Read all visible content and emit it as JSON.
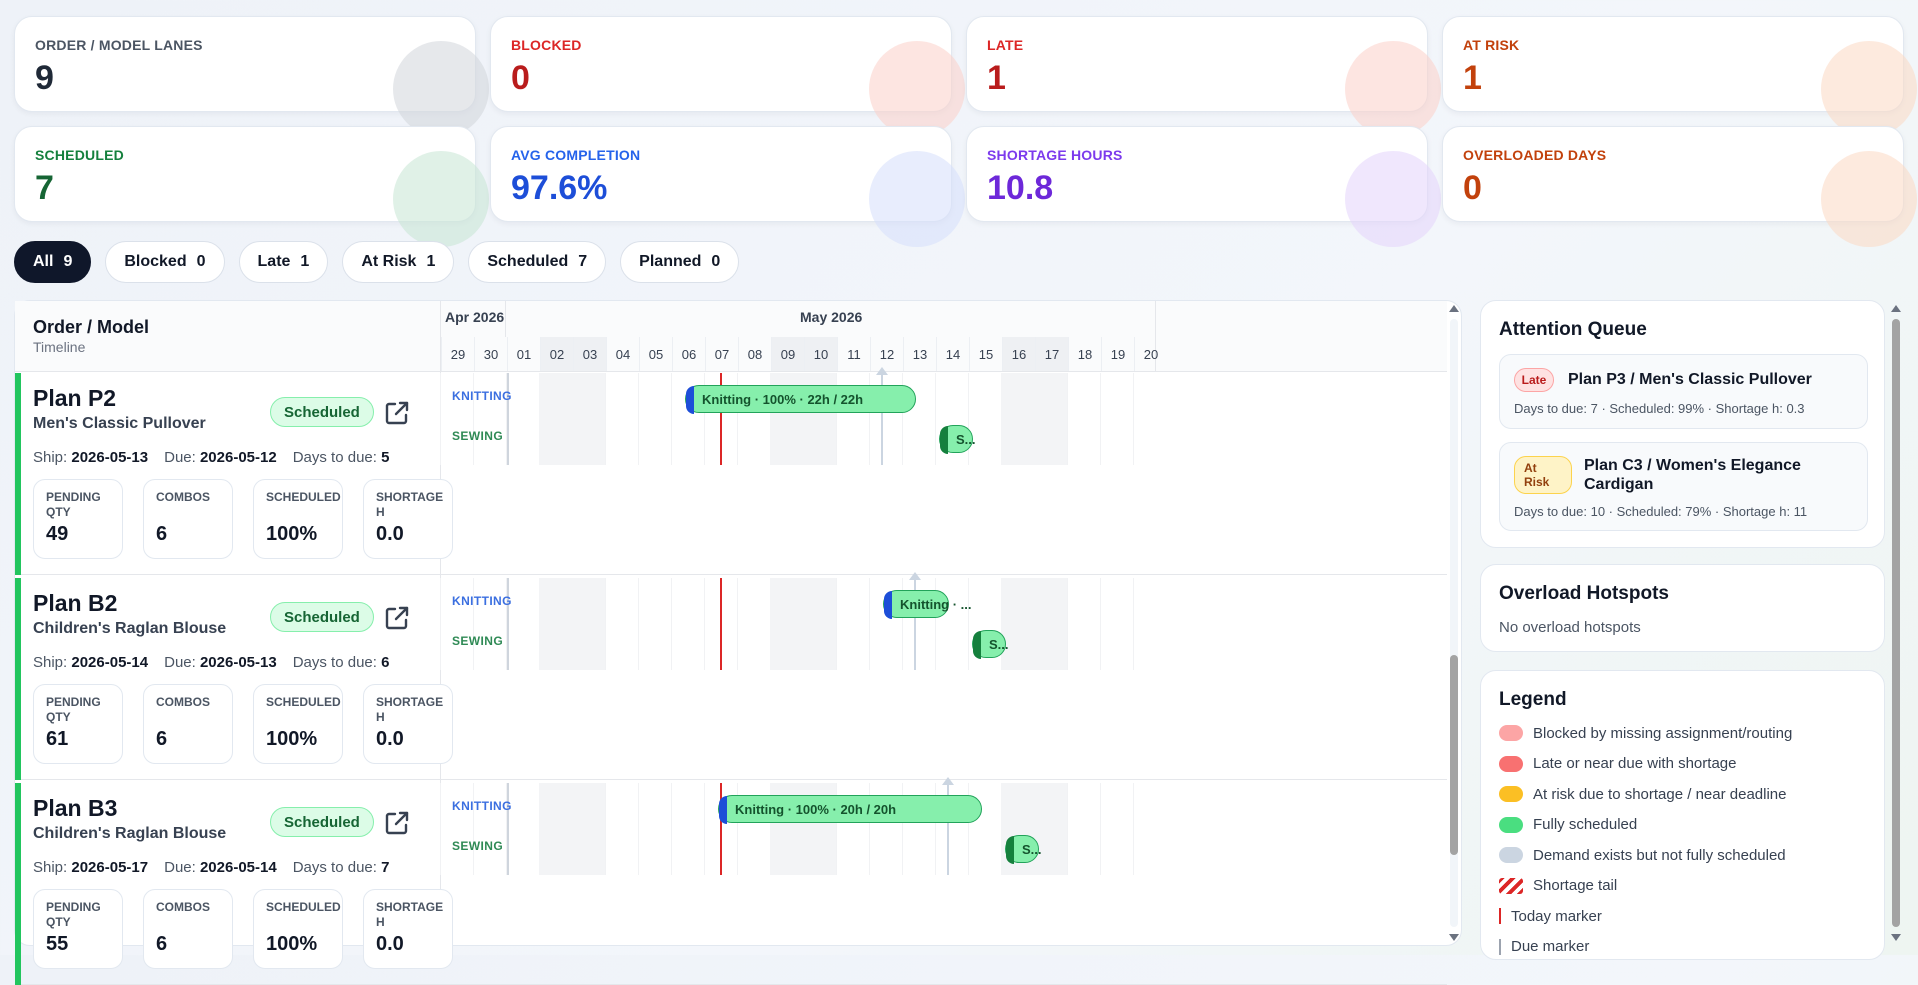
{
  "kpis": [
    {
      "label": "ORDER / MODEL LANES",
      "value": "9",
      "color": "#4b5563",
      "value_color": "#1f2937",
      "blob": "#d1d5db"
    },
    {
      "label": "BLOCKED",
      "value": "0",
      "color": "#dc2626",
      "value_color": "#b91c1c",
      "blob": "#fbcfc8"
    },
    {
      "label": "LATE",
      "value": "1",
      "color": "#dc2626",
      "value_color": "#b91c1c",
      "blob": "#fbcfc8"
    },
    {
      "label": "AT RISK",
      "value": "1",
      "color": "#c2410c",
      "value_color": "#c2410c",
      "blob": "#fbd9c3"
    },
    {
      "label": "SCHEDULED",
      "value": "7",
      "color": "#15803d",
      "value_color": "#166534",
      "blob": "#c7e6d3"
    },
    {
      "label": "AVG COMPLETION",
      "value": "97.6%",
      "color": "#2563eb",
      "value_color": "#1d4ed8",
      "blob": "#d6defc"
    },
    {
      "label": "SHORTAGE HOURS",
      "value": "10.8",
      "color": "#7c3aed",
      "value_color": "#6d28d9",
      "blob": "#e4d4fb"
    },
    {
      "label": "OVERLOADED DAYS",
      "value": "0",
      "color": "#c2410c",
      "value_color": "#c2410c",
      "blob": "#fbd9c3"
    }
  ],
  "filters": [
    {
      "label": "All",
      "count": "9",
      "active": true
    },
    {
      "label": "Blocked",
      "count": "0"
    },
    {
      "label": "Late",
      "count": "1"
    },
    {
      "label": "At Risk",
      "count": "1"
    },
    {
      "label": "Scheduled",
      "count": "7"
    },
    {
      "label": "Planned",
      "count": "0"
    }
  ],
  "gantt": {
    "header_title": "Order / Model",
    "header_sub": "Timeline",
    "months": [
      "Apr 2026",
      "May 2026"
    ],
    "days": [
      "29",
      "30",
      "01",
      "02",
      "03",
      "04",
      "05",
      "06",
      "07",
      "08",
      "09",
      "10",
      "11",
      "12",
      "13",
      "14",
      "15",
      "16",
      "17",
      "18",
      "19",
      "20"
    ],
    "weekend_days": [
      "02",
      "03",
      "09",
      "10",
      "16",
      "17"
    ],
    "lane_labels": {
      "knitting": "KNITTING",
      "sewing": "SEWING"
    },
    "stat_labels": {
      "pending": "PENDING QTY",
      "combos": "COMBOS",
      "scheduled": "SCHEDULED",
      "shortage": "SHORTAGE H"
    },
    "meta_labels": {
      "ship": "Ship:",
      "due": "Due:",
      "days": "Days to due:"
    },
    "today_day": "07",
    "rows": [
      {
        "plan": "Plan P2",
        "model": "Men's Classic Pullover",
        "status": "Scheduled",
        "ship": "2026-05-13",
        "due": "2026-05-12",
        "days_to_due": "5",
        "pending_qty": "49",
        "combos": "6",
        "scheduled": "100%",
        "shortage_h": "0.0",
        "knit_label": "Knitting · 100% · 22h / 22h",
        "sew_label": "S...",
        "knit_start": "06",
        "knit_end_day": "13",
        "sew_start": "14",
        "sew_end_day": "14",
        "due_day": "12"
      },
      {
        "plan": "Plan B2",
        "model": "Children's Raglan Blouse",
        "status": "Scheduled",
        "ship": "2026-05-14",
        "due": "2026-05-13",
        "days_to_due": "6",
        "pending_qty": "61",
        "combos": "6",
        "scheduled": "100%",
        "shortage_h": "0.0",
        "knit_label": "Knitting · ...",
        "sew_label": "S...",
        "knit_start": "12",
        "knit_end_day": "14",
        "sew_start": "15",
        "sew_end_day": "15",
        "due_day": "13"
      },
      {
        "plan": "Plan B3",
        "model": "Children's Raglan Blouse",
        "status": "Scheduled",
        "ship": "2026-05-17",
        "due": "2026-05-14",
        "days_to_due": "7",
        "pending_qty": "55",
        "combos": "6",
        "scheduled": "100%",
        "shortage_h": "0.0",
        "knit_label": "Knitting · 100% · 20h / 20h",
        "sew_label": "S...",
        "knit_start": "07",
        "knit_end_day": "15",
        "sew_start": "16",
        "sew_end_day": "16",
        "due_day": "14"
      }
    ]
  },
  "attention": {
    "title": "Attention Queue",
    "items": [
      {
        "tag": "Late",
        "title": "Plan P3 / Men's Classic Pullover",
        "sub": "Days to due: 7 · Scheduled: 99% · Shortage h: 0.3"
      },
      {
        "tag_line1": "At",
        "tag_line2": "Risk",
        "title": "Plan C3 / Women's Elegance Cardigan",
        "sub": "Days to due: 10 · Scheduled: 79% · Shortage h: 11"
      }
    ]
  },
  "overload": {
    "title": "Overload Hotspots",
    "empty": "No overload hotspots"
  },
  "legend": {
    "title": "Legend",
    "items": [
      {
        "label": "Blocked by missing assignment/routing",
        "color": "#fca5a5"
      },
      {
        "label": "Late or near due with shortage",
        "color": "#f87171"
      },
      {
        "label": "At risk due to shortage / near deadline",
        "color": "#fbbf24"
      },
      {
        "label": "Fully scheduled",
        "color": "#4ade80"
      },
      {
        "label": "Demand exists but not fully scheduled",
        "color": "#cbd5e1"
      },
      {
        "label": "Shortage tail",
        "color": "#dc2626"
      },
      {
        "label": "Today marker",
        "color": "#dc2626"
      },
      {
        "label": "Due marker",
        "color": "#9ca3af"
      }
    ]
  }
}
